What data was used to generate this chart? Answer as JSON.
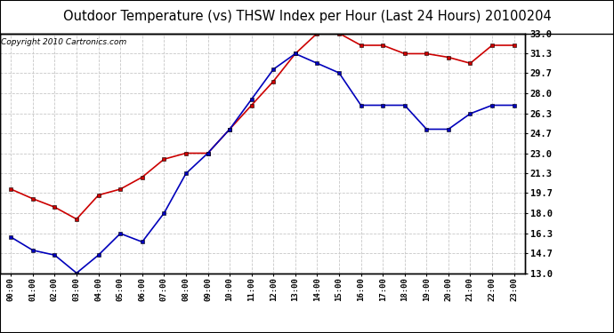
{
  "title": "Outdoor Temperature (vs) THSW Index per Hour (Last 24 Hours) 20100204",
  "copyright": "Copyright 2010 Cartronics.com",
  "hours": [
    "00:00",
    "01:00",
    "02:00",
    "03:00",
    "04:00",
    "05:00",
    "06:00",
    "07:00",
    "08:00",
    "09:00",
    "10:00",
    "11:00",
    "12:00",
    "13:00",
    "14:00",
    "15:00",
    "16:00",
    "17:00",
    "18:00",
    "19:00",
    "20:00",
    "21:00",
    "22:00",
    "23:00"
  ],
  "temp_blue": [
    16.0,
    14.9,
    14.5,
    13.0,
    14.5,
    16.3,
    15.6,
    18.0,
    21.3,
    23.0,
    25.0,
    27.5,
    30.0,
    31.3,
    30.5,
    29.7,
    27.0,
    27.0,
    27.0,
    25.0,
    25.0,
    26.3,
    27.0,
    27.0
  ],
  "thsw_red": [
    20.0,
    19.2,
    18.5,
    17.5,
    19.5,
    20.0,
    21.0,
    22.5,
    23.0,
    23.0,
    25.0,
    27.0,
    29.0,
    31.3,
    33.0,
    33.0,
    32.0,
    32.0,
    31.3,
    31.3,
    31.0,
    30.5,
    32.0,
    32.0
  ],
  "ylim_min": 13.0,
  "ylim_max": 33.0,
  "yticks": [
    13.0,
    14.7,
    16.3,
    18.0,
    19.7,
    21.3,
    23.0,
    24.7,
    26.3,
    28.0,
    29.7,
    31.3,
    33.0
  ],
  "bg_color": "#ffffff",
  "grid_color": "#c8c8c8",
  "line_blue": "#0000bb",
  "line_red": "#cc0000",
  "title_color": "#000000",
  "title_fontsize": 10.5,
  "copyright_fontsize": 6.5
}
